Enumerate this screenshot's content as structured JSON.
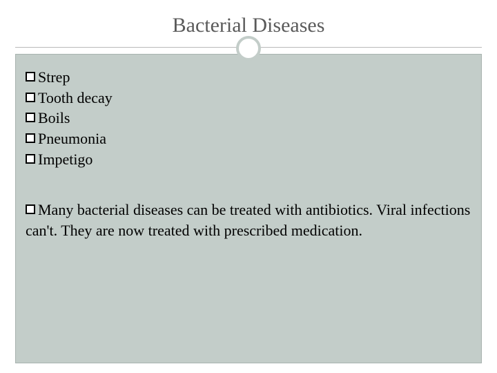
{
  "slide": {
    "title": "Bacterial Diseases",
    "title_color": "#5a5a5a",
    "title_fontsize": 30,
    "background_color": "#ffffff",
    "content_background_color": "#c3cdc9",
    "content_border_color": "#a8b3af",
    "circle_border_color": "#c3cdc9",
    "divider_color": "#b8b8b8",
    "text_color": "#000000",
    "body_fontsize": 22,
    "bullet_style": "square-outline",
    "list_items": [
      "Strep",
      "Tooth decay",
      "Boils",
      "Pneumonia",
      "Impetigo"
    ],
    "paragraph": "Many bacterial diseases can be treated with antibiotics. Viral infections can't. They are now treated with prescribed medication."
  }
}
